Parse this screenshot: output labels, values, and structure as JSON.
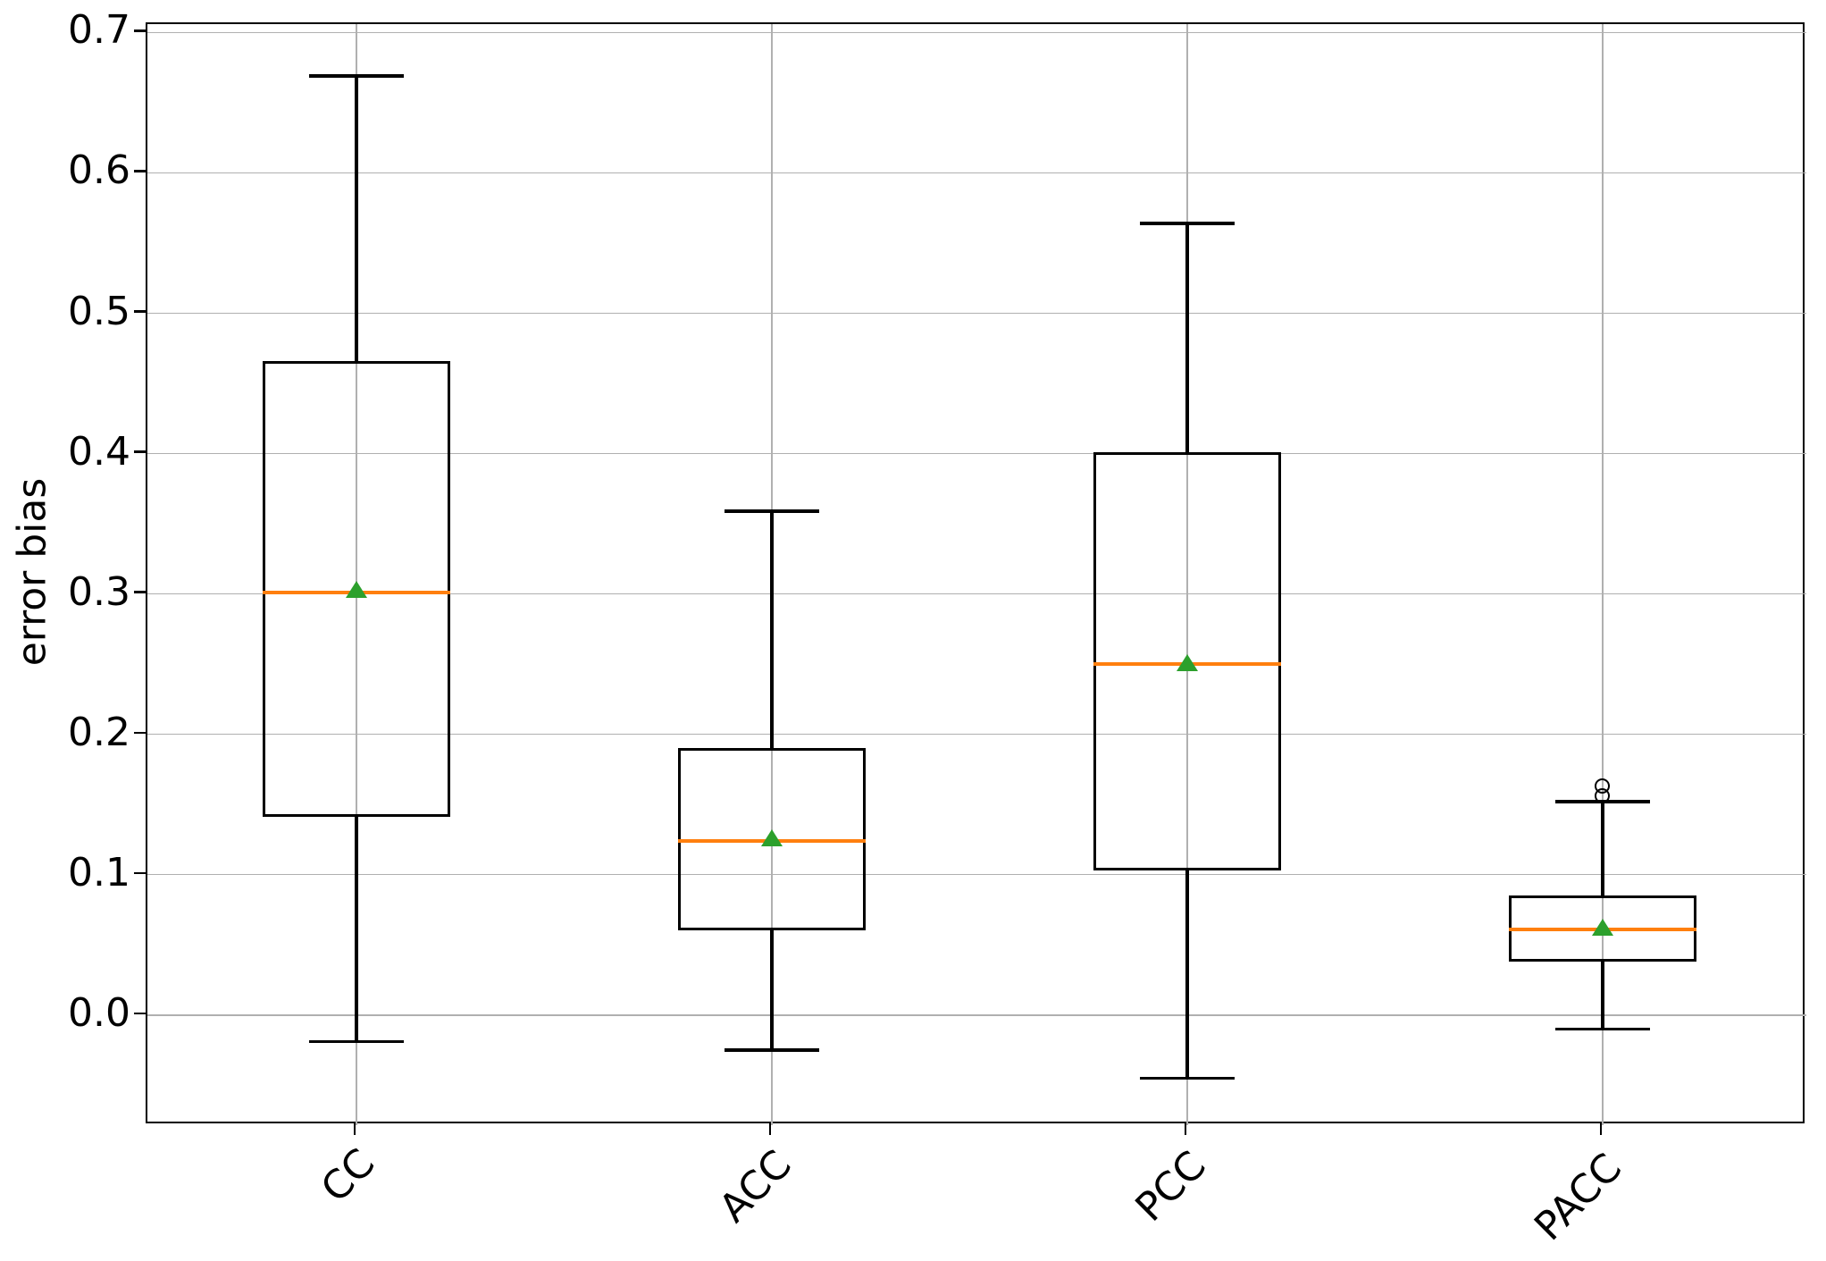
{
  "chart_data": {
    "type": "box",
    "title": "",
    "xlabel": "",
    "ylabel": "error bias",
    "categories": [
      "CC",
      "ACC",
      "PCC",
      "PACC"
    ],
    "ylim": [
      -0.0785,
      0.706
    ],
    "yticks": [
      0.0,
      0.1,
      0.2,
      0.3,
      0.4,
      0.5,
      0.6,
      0.7
    ],
    "ytick_labels": [
      "0.0",
      "0.1",
      "0.2",
      "0.3",
      "0.4",
      "0.5",
      "0.6",
      "0.7"
    ],
    "grid": true,
    "legend": "none",
    "series": [
      {
        "name": "CC",
        "whisker_low": -0.019,
        "q1": 0.141,
        "median": 0.301,
        "mean": 0.303,
        "q3": 0.466,
        "whisker_high": 0.669,
        "outliers": []
      },
      {
        "name": "ACC",
        "whisker_low": -0.025,
        "q1": 0.06,
        "median": 0.124,
        "mean": 0.126,
        "q3": 0.19,
        "whisker_high": 0.359,
        "outliers": []
      },
      {
        "name": "PCC",
        "whisker_low": -0.045,
        "q1": 0.103,
        "median": 0.25,
        "mean": 0.251,
        "q3": 0.401,
        "whisker_high": 0.564,
        "outliers": []
      },
      {
        "name": "PACC",
        "whisker_low": -0.01,
        "q1": 0.038,
        "median": 0.061,
        "mean": 0.062,
        "q3": 0.085,
        "whisker_high": 0.152,
        "outliers": [
          0.156,
          0.163
        ]
      }
    ],
    "colors": {
      "median": "#ff7f0e",
      "mean": "#2ca02c",
      "line": "#000000",
      "grid": "#b0b0b0",
      "background": "#ffffff"
    }
  }
}
